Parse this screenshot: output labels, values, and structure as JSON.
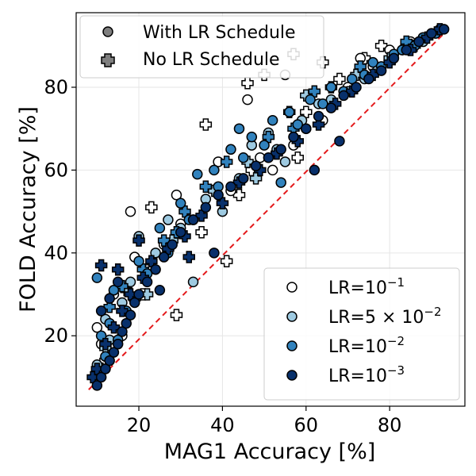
{
  "chart_data": {
    "type": "scatter",
    "xlabel": "MAG1 Accuracy [%]",
    "ylabel": "FOLD Accuracy [%]",
    "xlim": [
      5,
      98
    ],
    "ylim": [
      3,
      98
    ],
    "x_ticks": [
      20,
      40,
      60,
      80
    ],
    "y_ticks": [
      20,
      40,
      60,
      80
    ],
    "x_tick_labels": [
      "20",
      "40",
      "60",
      "80"
    ],
    "y_tick_labels": [
      "20",
      "40",
      "60",
      "80"
    ],
    "grid": true,
    "reference_line": {
      "name": "y = x",
      "style": "dashed",
      "color": "#e41a1c",
      "from": [
        8,
        7
      ],
      "to": [
        94,
        94
      ]
    },
    "marker_legend": {
      "placement": "upper-left",
      "entries": [
        {
          "label": "With LR Schedule",
          "marker": "circle"
        },
        {
          "label": "No LR Schedule",
          "marker": "plus"
        }
      ]
    },
    "color_legend": {
      "placement": "lower-right",
      "entries": [
        {
          "base": "LR=10",
          "exp": "−1",
          "color": "#ffffff"
        },
        {
          "base": "LR=5 × 10",
          "exp": "−2",
          "color": "#9ecae1"
        },
        {
          "base": "LR=10",
          "exp": "−2",
          "color": "#3182bd"
        },
        {
          "base": "LR=10",
          "exp": "−3",
          "color": "#08306b"
        }
      ]
    },
    "series": [
      {
        "name": "LR=1e-1",
        "color": "#ffffff",
        "circle_points": [
          [
            18,
            50
          ],
          [
            29,
            54
          ],
          [
            46,
            77
          ],
          [
            55,
            83
          ],
          [
            39,
            62
          ],
          [
            49,
            63
          ],
          [
            60,
            70
          ],
          [
            73,
            87
          ],
          [
            80,
            89
          ],
          [
            85,
            91
          ],
          [
            90,
            93
          ],
          [
            22,
            36
          ],
          [
            26,
            42
          ],
          [
            33,
            48
          ],
          [
            42,
            55
          ],
          [
            52,
            60
          ],
          [
            64,
            72
          ],
          [
            70,
            80
          ],
          [
            11,
            18
          ],
          [
            10,
            22
          ],
          [
            14,
            30
          ],
          [
            19,
            39
          ],
          [
            30,
            47
          ],
          [
            57,
            66
          ],
          [
            76,
            85
          ],
          [
            88,
            92
          ],
          [
            12,
            12
          ],
          [
            16,
            20
          ]
        ],
        "plus_points": [
          [
            46,
            81
          ],
          [
            50,
            83
          ],
          [
            57,
            88
          ],
          [
            64,
            86
          ],
          [
            74,
            87
          ],
          [
            78,
            90
          ],
          [
            84,
            90
          ],
          [
            36,
            71
          ],
          [
            23,
            51
          ],
          [
            41,
            38
          ],
          [
            29,
            25
          ],
          [
            47,
            60
          ],
          [
            53,
            64
          ],
          [
            60,
            74
          ],
          [
            35,
            45
          ],
          [
            68,
            82
          ],
          [
            12,
            14
          ],
          [
            21,
            30
          ],
          [
            44,
            54
          ],
          [
            58,
            63
          ]
        ]
      },
      {
        "name": "LR=5e-2",
        "color": "#9ecae1",
        "circle_points": [
          [
            20,
            44
          ],
          [
            27,
            48
          ],
          [
            33,
            33
          ],
          [
            40,
            50
          ],
          [
            47,
            66
          ],
          [
            55,
            62
          ],
          [
            63,
            76
          ],
          [
            70,
            79
          ],
          [
            77,
            84
          ],
          [
            83,
            89
          ],
          [
            88,
            91
          ],
          [
            92,
            94
          ],
          [
            13,
            19
          ],
          [
            16,
            28
          ],
          [
            24,
            40
          ],
          [
            36,
            53
          ],
          [
            44,
            58
          ],
          [
            51,
            69
          ],
          [
            59,
            72
          ],
          [
            66,
            77
          ],
          [
            74,
            82
          ],
          [
            10,
            13
          ],
          [
            12,
            24
          ],
          [
            18,
            33
          ],
          [
            30,
            46
          ],
          [
            53,
            65
          ]
        ],
        "plus_points": [
          [
            60,
            78
          ],
          [
            56,
            74
          ],
          [
            46,
            62
          ],
          [
            38,
            55
          ],
          [
            28,
            43
          ],
          [
            17,
            31
          ],
          [
            72,
            83
          ],
          [
            80,
            87
          ],
          [
            86,
            90
          ],
          [
            66,
            80
          ],
          [
            22,
            30
          ],
          [
            48,
            58
          ],
          [
            12,
            17
          ]
        ]
      },
      {
        "name": "LR=1e-2",
        "color": "#3182bd",
        "circle_points": [
          [
            10,
            34
          ],
          [
            14,
            31
          ],
          [
            20,
            38
          ],
          [
            25,
            46
          ],
          [
            30,
            52
          ],
          [
            34,
            59
          ],
          [
            38,
            60
          ],
          [
            42,
            65
          ],
          [
            47,
            68
          ],
          [
            52,
            72
          ],
          [
            56,
            74
          ],
          [
            61,
            77
          ],
          [
            66,
            80
          ],
          [
            71,
            82
          ],
          [
            76,
            86
          ],
          [
            81,
            88
          ],
          [
            86,
            90
          ],
          [
            91,
            93
          ],
          [
            11,
            20
          ],
          [
            13,
            23
          ],
          [
            17,
            26
          ],
          [
            22,
            35
          ],
          [
            27,
            40
          ],
          [
            32,
            48
          ],
          [
            39,
            56
          ],
          [
            45,
            63
          ],
          [
            50,
            66
          ],
          [
            58,
            71
          ],
          [
            64,
            76
          ],
          [
            69,
            79
          ],
          [
            74,
            83
          ],
          [
            78,
            85
          ],
          [
            83,
            89
          ],
          [
            88,
            92
          ],
          [
            12,
            15
          ],
          [
            15,
            19
          ],
          [
            44,
            70
          ],
          [
            54,
            57
          ]
        ],
        "plus_points": [
          [
            16,
            32
          ],
          [
            21,
            36
          ],
          [
            26,
            43
          ],
          [
            31,
            50
          ],
          [
            36,
            56
          ],
          [
            41,
            62
          ],
          [
            51,
            68
          ],
          [
            62,
            79
          ],
          [
            73,
            85
          ],
          [
            84,
            91
          ],
          [
            13,
            27
          ],
          [
            19,
            29
          ],
          [
            29,
            45
          ],
          [
            57,
            70
          ]
        ]
      },
      {
        "name": "LR=1e-3",
        "color": "#08306b",
        "circle_points": [
          [
            10,
            8
          ],
          [
            11,
            10
          ],
          [
            12,
            12
          ],
          [
            13,
            14
          ],
          [
            14,
            16
          ],
          [
            15,
            18
          ],
          [
            16,
            21
          ],
          [
            17,
            23
          ],
          [
            18,
            25
          ],
          [
            19,
            28
          ],
          [
            20,
            30
          ],
          [
            22,
            33
          ],
          [
            24,
            36
          ],
          [
            26,
            39
          ],
          [
            28,
            42
          ],
          [
            30,
            45
          ],
          [
            33,
            48
          ],
          [
            36,
            51
          ],
          [
            39,
            54
          ],
          [
            42,
            56
          ],
          [
            45,
            58
          ],
          [
            48,
            61
          ],
          [
            51,
            63
          ],
          [
            54,
            65
          ],
          [
            57,
            68
          ],
          [
            60,
            70
          ],
          [
            63,
            73
          ],
          [
            66,
            75
          ],
          [
            69,
            78
          ],
          [
            72,
            80
          ],
          [
            75,
            82
          ],
          [
            78,
            84
          ],
          [
            81,
            87
          ],
          [
            84,
            89
          ],
          [
            87,
            91
          ],
          [
            90,
            93
          ],
          [
            93,
            94
          ],
          [
            11,
            26
          ],
          [
            13,
            29
          ],
          [
            15,
            33
          ],
          [
            62,
            60
          ],
          [
            68,
            67
          ],
          [
            38,
            40
          ],
          [
            25,
            31
          ]
        ],
        "plus_points": [
          [
            9,
            10
          ],
          [
            10,
            12
          ],
          [
            12,
            18
          ],
          [
            14,
            22
          ],
          [
            16,
            26
          ],
          [
            18,
            30
          ],
          [
            21,
            34
          ],
          [
            23,
            38
          ],
          [
            27,
            41
          ],
          [
            31,
            44
          ],
          [
            35,
            49
          ],
          [
            40,
            52
          ],
          [
            44,
            57
          ],
          [
            49,
            60
          ],
          [
            53,
            64
          ],
          [
            58,
            67
          ],
          [
            63,
            71
          ],
          [
            67,
            76
          ],
          [
            71,
            79
          ],
          [
            76,
            83
          ],
          [
            80,
            86
          ],
          [
            85,
            89
          ],
          [
            89,
            92
          ],
          [
            92,
            94
          ],
          [
            11,
            37
          ],
          [
            15,
            36
          ],
          [
            20,
            43
          ],
          [
            32,
            39
          ]
        ]
      }
    ]
  }
}
